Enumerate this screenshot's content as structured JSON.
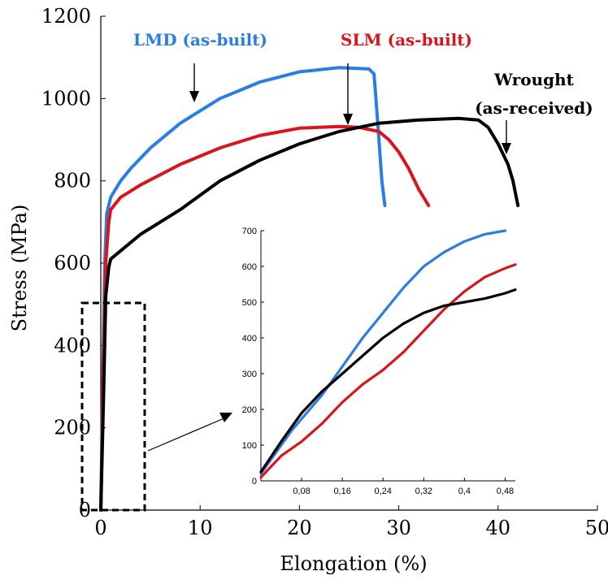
{
  "colors": {
    "lmd": "#2a7de1",
    "slm": "#d9141a",
    "wrought": "#000000"
  },
  "chart_data": [
    {
      "type": "line",
      "xlabel": "Elongation (%)",
      "ylabel": "Stress (MPa)",
      "xlim": [
        0,
        50
      ],
      "ylim": [
        0,
        1200
      ],
      "xticks": [
        "0",
        "10",
        "20",
        "30",
        "40",
        "50"
      ],
      "yticks": [
        "0",
        "200",
        "400",
        "600",
        "800",
        "1000",
        "1200"
      ],
      "grid": false,
      "annotations": [
        {
          "text": "LMD (as-built)",
          "series": "lmd"
        },
        {
          "text": "SLM (as-built)",
          "series": "slm"
        },
        {
          "text": "Wrought",
          "series": "wrought"
        },
        {
          "text": "(as-received)",
          "series": "wrought"
        }
      ],
      "series": [
        {
          "key": "lmd",
          "color": "#2a7de1",
          "x": [
            0,
            0.2,
            0.4,
            0.6,
            1,
            2,
            3,
            5,
            8,
            12,
            16,
            20,
            24,
            27,
            27.5,
            27.7,
            28,
            28.3,
            28.6
          ],
          "y": [
            0,
            300,
            600,
            720,
            760,
            800,
            830,
            880,
            940,
            1000,
            1040,
            1065,
            1075,
            1072,
            1060,
            1000,
            900,
            800,
            740
          ]
        },
        {
          "key": "slm",
          "color": "#d9141a",
          "x": [
            0,
            0.3,
            0.5,
            0.8,
            1,
            2,
            4,
            8,
            12,
            16,
            20,
            24,
            26,
            28,
            29,
            30,
            31,
            32,
            33
          ],
          "y": [
            0,
            400,
            600,
            700,
            730,
            760,
            790,
            840,
            880,
            910,
            928,
            932,
            930,
            920,
            900,
            870,
            830,
            780,
            740
          ]
        },
        {
          "key": "wrought",
          "color": "#000000",
          "x": [
            0,
            0.3,
            0.5,
            0.8,
            1,
            2,
            4,
            8,
            12,
            16,
            20,
            24,
            28,
            32,
            36,
            38,
            39,
            40,
            41,
            41.5,
            42
          ],
          "y": [
            0,
            300,
            520,
            590,
            610,
            630,
            670,
            730,
            800,
            850,
            890,
            920,
            940,
            948,
            952,
            948,
            930,
            890,
            840,
            800,
            740
          ]
        }
      ]
    },
    {
      "type": "line",
      "inset": true,
      "xlim": [
        0,
        0.5
      ],
      "ylim": [
        0,
        700
      ],
      "xticks": [
        "0,08",
        "0,16",
        "0,24",
        "0,32",
        "0,4",
        "0,48"
      ],
      "yticks": [
        "0",
        "100",
        "200",
        "300",
        "400",
        "500",
        "600",
        "700"
      ],
      "series": [
        {
          "key": "lmd",
          "color": "#2a7de1",
          "x": [
            0,
            0.03,
            0.06,
            0.09,
            0.12,
            0.16,
            0.2,
            0.24,
            0.28,
            0.32,
            0.36,
            0.4,
            0.44,
            0.48
          ],
          "y": [
            20,
            80,
            140,
            190,
            240,
            320,
            400,
            470,
            540,
            600,
            640,
            670,
            690,
            700
          ]
        },
        {
          "key": "slm",
          "color": "#d9141a",
          "x": [
            0,
            0.04,
            0.08,
            0.12,
            0.16,
            0.2,
            0.24,
            0.28,
            0.32,
            0.36,
            0.4,
            0.44,
            0.48,
            0.5
          ],
          "y": [
            10,
            70,
            110,
            160,
            220,
            270,
            310,
            360,
            420,
            480,
            530,
            570,
            595,
            605
          ]
        },
        {
          "key": "wrought",
          "color": "#000000",
          "x": [
            0,
            0.04,
            0.08,
            0.12,
            0.16,
            0.2,
            0.24,
            0.28,
            0.32,
            0.36,
            0.4,
            0.44,
            0.48,
            0.5
          ],
          "y": [
            25,
            110,
            190,
            250,
            300,
            350,
            400,
            440,
            470,
            490,
            500,
            510,
            525,
            535
          ]
        }
      ]
    }
  ]
}
